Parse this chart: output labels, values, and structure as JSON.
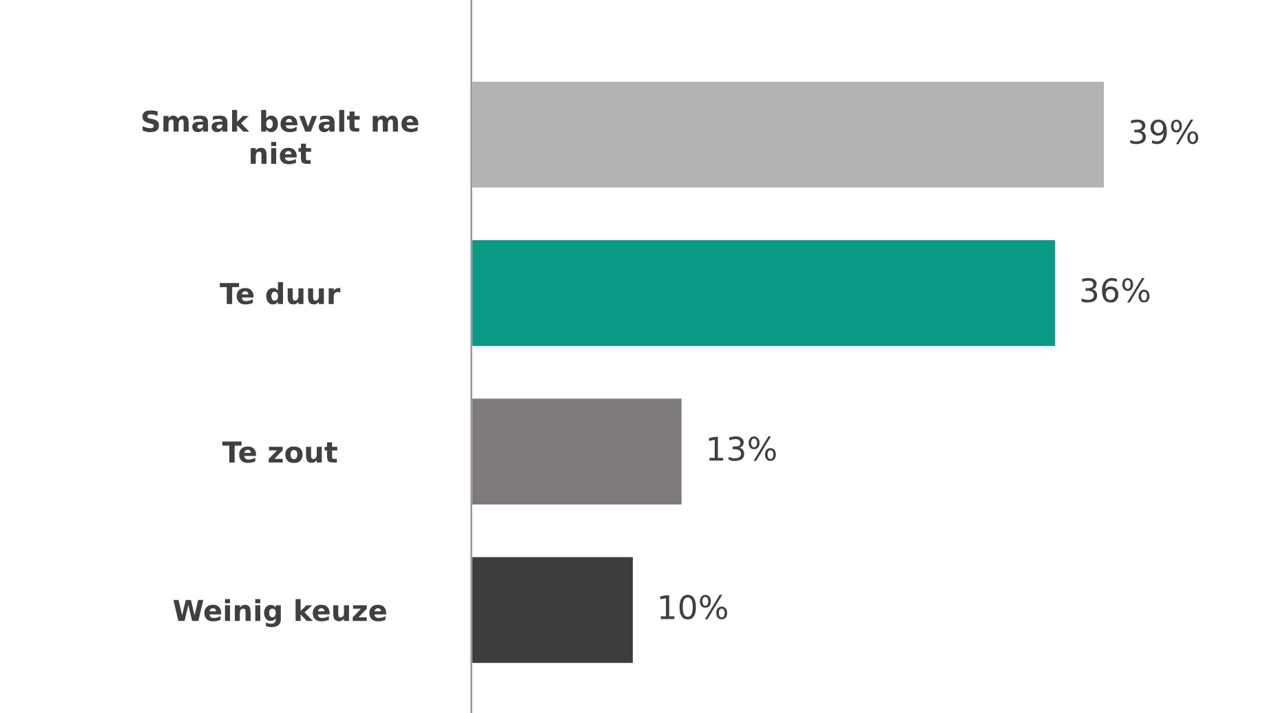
{
  "chart_data": {
    "type": "bar",
    "orientation": "horizontal",
    "categories": [
      "Smaak bevalt me\nniet",
      "Te duur",
      "Te zout",
      "Weinig keuze"
    ],
    "values": [
      39,
      36,
      13,
      10
    ],
    "colors": [
      "#b3b3b3",
      "#0a9a85",
      "#7f7a7a",
      "#3f3d3c"
    ],
    "value_labels": [
      "39%",
      "36%",
      "13%",
      "10%"
    ],
    "grid": false,
    "legend": false
  }
}
